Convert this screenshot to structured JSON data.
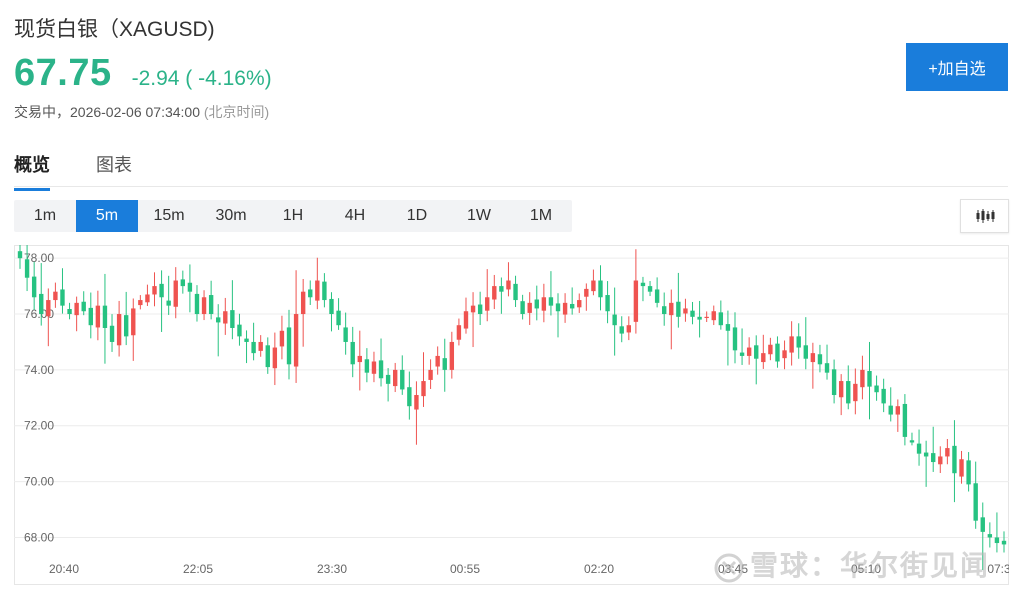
{
  "header": {
    "title": "现货白银（XAGUSD)",
    "price": "67.75",
    "change": "-2.94 ( -4.16%)",
    "status": "交易中，2026-02-06 07:34:00",
    "timezone": "(北京时间)",
    "add_button": "+加自选"
  },
  "tabs": [
    {
      "label": "概览",
      "active": true
    },
    {
      "label": "图表",
      "active": false
    }
  ],
  "periods": [
    {
      "label": "1m"
    },
    {
      "label": "5m",
      "active": true
    },
    {
      "label": "15m"
    },
    {
      "label": "30m"
    },
    {
      "label": "1H"
    },
    {
      "label": "4H"
    },
    {
      "label": "1D"
    },
    {
      "label": "1W"
    },
    {
      "label": "1M"
    }
  ],
  "chart_type_icon": "candlestick-icon",
  "watermark": "雪球：华尔街见闻",
  "colors": {
    "up": "#ef5350",
    "down": "#26c281",
    "accent": "#1a7ddb",
    "price_down": "#2bb389"
  },
  "chart_data": {
    "type": "candlestick",
    "ylim": [
      67.3,
      78.4
    ],
    "y_ticks": [
      "78.00",
      "76.00",
      "74.00",
      "72.00",
      "70.00",
      "68.00"
    ],
    "y_tick_values": [
      78,
      76,
      74,
      72,
      70,
      68
    ],
    "x_ticks": [
      "20:40",
      "22:05",
      "23:30",
      "00:55",
      "02:20",
      "03:45",
      "05:10",
      "07:3"
    ],
    "grid": true,
    "closes": [
      78.0,
      77.3,
      76.6,
      76.0,
      76.5,
      76.8,
      76.3,
      76.0,
      76.4,
      76.1,
      75.6,
      76.3,
      75.5,
      75.0,
      76.0,
      75.2,
      76.2,
      76.5,
      76.7,
      77.0,
      76.6,
      76.3,
      77.2,
      77.0,
      76.8,
      76.0,
      76.6,
      76.0,
      75.7,
      76.1,
      75.5,
      75.2,
      75.0,
      74.6,
      75.0,
      74.1,
      74.8,
      75.4,
      74.2,
      76.0,
      76.8,
      76.6,
      77.2,
      76.5,
      76.0,
      75.6,
      75.0,
      74.2,
      74.5,
      73.9,
      74.3,
      73.7,
      73.5,
      74.0,
      73.3,
      72.7,
      73.1,
      73.6,
      74.0,
      74.5,
      74.0,
      75.0,
      75.6,
      76.1,
      76.3,
      76.0,
      76.6,
      77.0,
      76.8,
      77.2,
      76.5,
      76.0,
      76.4,
      76.2,
      76.6,
      76.3,
      76.1,
      76.4,
      76.2,
      76.5,
      76.9,
      77.2,
      76.6,
      76.1,
      75.6,
      75.3,
      75.6,
      77.2,
      77.0,
      76.8,
      76.4,
      76.0,
      76.4,
      75.9,
      76.2,
      75.9,
      75.8,
      75.9,
      76.1,
      75.6,
      75.4,
      74.7,
      74.5,
      74.8,
      74.4,
      74.6,
      74.9,
      74.3,
      74.7,
      75.2,
      74.8,
      74.4,
      74.6,
      74.2,
      73.9,
      73.1,
      73.6,
      72.8,
      73.5,
      74.0,
      73.4,
      73.2,
      72.8,
      72.4,
      72.7,
      71.6,
      71.4,
      71.0,
      70.9,
      70.7,
      70.9,
      71.2,
      70.3,
      70.8,
      69.9,
      68.6,
      68.2,
      68.0,
      67.8,
      67.75
    ]
  }
}
